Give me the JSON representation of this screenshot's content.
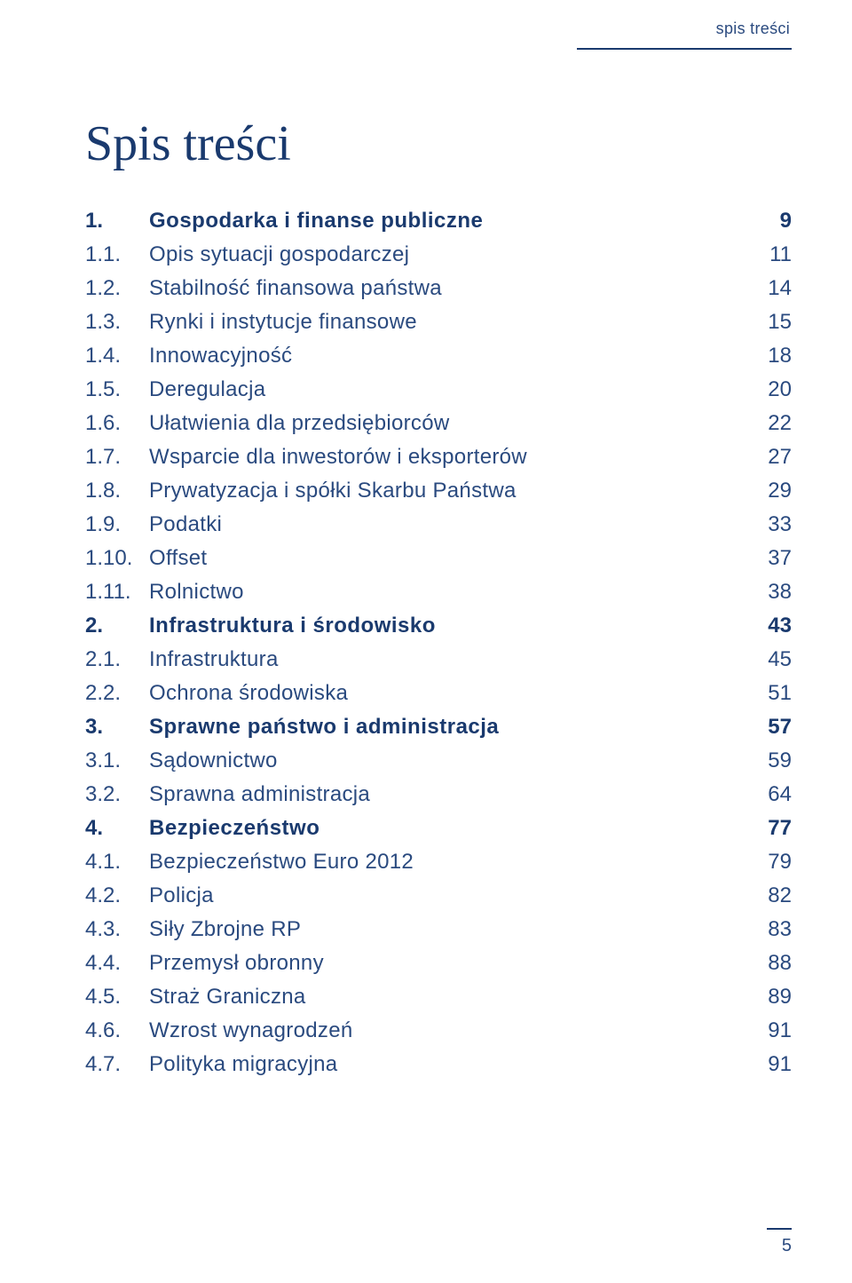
{
  "header_label": "spis treści",
  "page_title": "Spis treści",
  "page_number": "5",
  "colors": {
    "primary": "#1a3a6e",
    "secondary": "#2a4a7f",
    "background": "#ffffff"
  },
  "typography": {
    "title_font": "Georgia, serif",
    "title_size_pt": 42,
    "body_font": "Segoe UI, Arial, sans-serif",
    "lvl1_size_pt": 18,
    "lvl2_size_pt": 18
  },
  "toc": [
    {
      "level": 1,
      "num": "1.",
      "title": "Gospodarka i finanse publiczne",
      "page": "9"
    },
    {
      "level": 2,
      "num": "1.1.",
      "title": "Opis sytuacji gospodarczej",
      "page": "11"
    },
    {
      "level": 2,
      "num": "1.2.",
      "title": "Stabilność finansowa państwa",
      "page": "14"
    },
    {
      "level": 2,
      "num": "1.3.",
      "title": "Rynki i instytucje finansowe",
      "page": "15"
    },
    {
      "level": 2,
      "num": "1.4.",
      "title": "Innowacyjność",
      "page": "18"
    },
    {
      "level": 2,
      "num": "1.5.",
      "title": "Deregulacja",
      "page": "20"
    },
    {
      "level": 2,
      "num": "1.6.",
      "title": "Ułatwienia dla przedsiębiorców",
      "page": "22"
    },
    {
      "level": 2,
      "num": "1.7.",
      "title": "Wsparcie dla inwestorów i eksporterów",
      "page": "27"
    },
    {
      "level": 2,
      "num": "1.8.",
      "title": "Prywatyzacja i spółki Skarbu Państwa",
      "page": "29"
    },
    {
      "level": 2,
      "num": "1.9.",
      "title": "Podatki",
      "page": "33"
    },
    {
      "level": 2,
      "num": "1.10.",
      "title": "Offset",
      "page": "37"
    },
    {
      "level": 2,
      "num": "1.11.",
      "title": "Rolnictwo",
      "page": "38"
    },
    {
      "level": 1,
      "num": "2.",
      "title": "Infrastruktura  i środowisko",
      "page": "43"
    },
    {
      "level": 2,
      "num": "2.1.",
      "title": "Infrastruktura",
      "page": "45"
    },
    {
      "level": 2,
      "num": "2.2.",
      "title": "Ochrona środowiska",
      "page": "51"
    },
    {
      "level": 1,
      "num": "3.",
      "title": "Sprawne państwo i administracja",
      "page": "57"
    },
    {
      "level": 2,
      "num": "3.1.",
      "title": "Sądownictwo",
      "page": "59"
    },
    {
      "level": 2,
      "num": "3.2.",
      "title": "Sprawna administracja",
      "page": "64"
    },
    {
      "level": 1,
      "num": "4.",
      "title": "Bezpieczeństwo",
      "page": "77"
    },
    {
      "level": 2,
      "num": "4.1.",
      "title": "Bezpieczeństwo Euro 2012",
      "page": "79"
    },
    {
      "level": 2,
      "num": "4.2.",
      "title": "Policja",
      "page": "82"
    },
    {
      "level": 2,
      "num": "4.3.",
      "title": "Siły Zbrojne RP",
      "page": "83"
    },
    {
      "level": 2,
      "num": "4.4.",
      "title": "Przemysł obronny",
      "page": "88"
    },
    {
      "level": 2,
      "num": "4.5.",
      "title": "Straż Graniczna",
      "page": "89"
    },
    {
      "level": 2,
      "num": "4.6.",
      "title": "Wzrost wynagrodzeń",
      "page": "91"
    },
    {
      "level": 2,
      "num": "4.7.",
      "title": "Polityka migracyjna",
      "page": "91"
    }
  ]
}
